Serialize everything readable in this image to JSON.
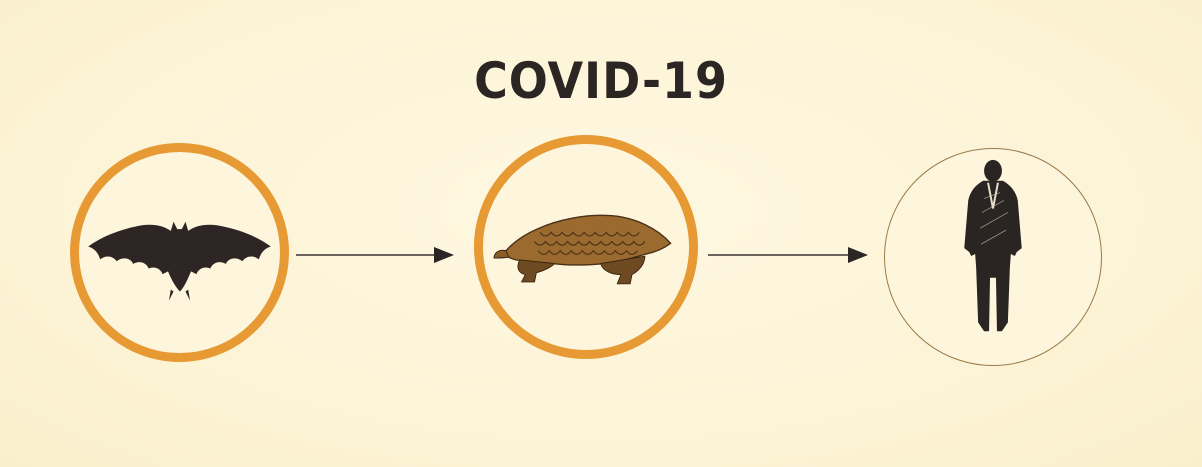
{
  "title": "COVID-19",
  "nodes": [
    {
      "id": "bat",
      "icon": "bat-icon",
      "ring_color": "#e79933"
    },
    {
      "id": "pangolin",
      "icon": "pangolin-icon",
      "ring_color": "#e79933"
    },
    {
      "id": "human",
      "icon": "human-silhouette-icon",
      "ring_color": "#9a7a4a"
    }
  ],
  "colors": {
    "background": "#fdf5d8",
    "accent": "#e79933",
    "ink": "#2b2523",
    "pangolin": "#9b6a2e"
  }
}
